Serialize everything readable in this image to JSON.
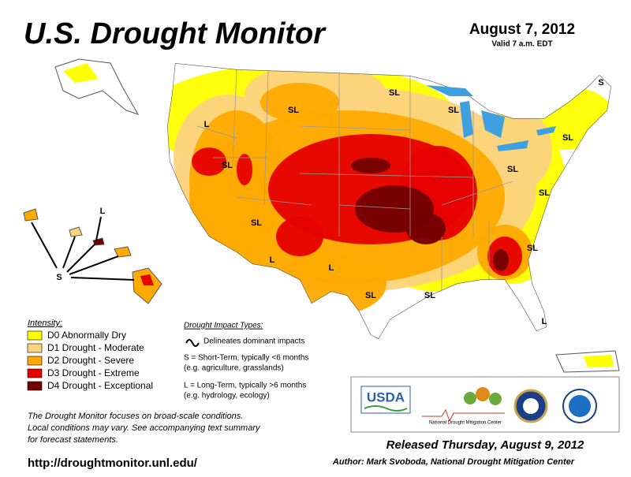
{
  "header": {
    "title": "U.S. Drought Monitor",
    "date": "August 7, 2012",
    "valid": "Valid 7 a.m. EDT"
  },
  "legend": {
    "title": "Intensity:",
    "items": [
      {
        "label": "D0 Abnormally Dry",
        "color": "#ffff00"
      },
      {
        "label": "D1 Drought - Moderate",
        "color": "#fcd37f"
      },
      {
        "label": "D2 Drought - Severe",
        "color": "#ffaa00"
      },
      {
        "label": "D3 Drought - Extreme",
        "color": "#e60000"
      },
      {
        "label": "D4 Drought - Exceptional",
        "color": "#730000"
      }
    ]
  },
  "impacts": {
    "title": "Drought Impact Types:",
    "line": "Delineates dominant impacts",
    "short": "S = Short-Term, typically <6 months",
    "short_eg": "(e.g. agriculture, grasslands)",
    "long": "L = Long-Term, typically >6 months",
    "long_eg": "(e.g. hydrology, ecology)"
  },
  "map_labels": [
    "S",
    "SL",
    "L",
    "SL",
    "SL",
    "SL",
    "SL",
    "SL",
    "SL",
    "SL",
    "L",
    "S",
    "L",
    "L",
    "SL",
    "SL",
    "SL",
    "L"
  ],
  "note": [
    "The Drought Monitor focuses on broad-scale conditions.",
    "Local conditions may vary. See accompanying text summary",
    "for forecast statements."
  ],
  "url": "http://droughtmonitor.unl.edu/",
  "footer": {
    "released": "Released Thursday, August 9, 2012",
    "author": "Author: Mark Svoboda, National Drought Mitigation Center"
  },
  "logos": {
    "usda": "USDA",
    "ndmc": "National Drought Mitigation Center"
  }
}
